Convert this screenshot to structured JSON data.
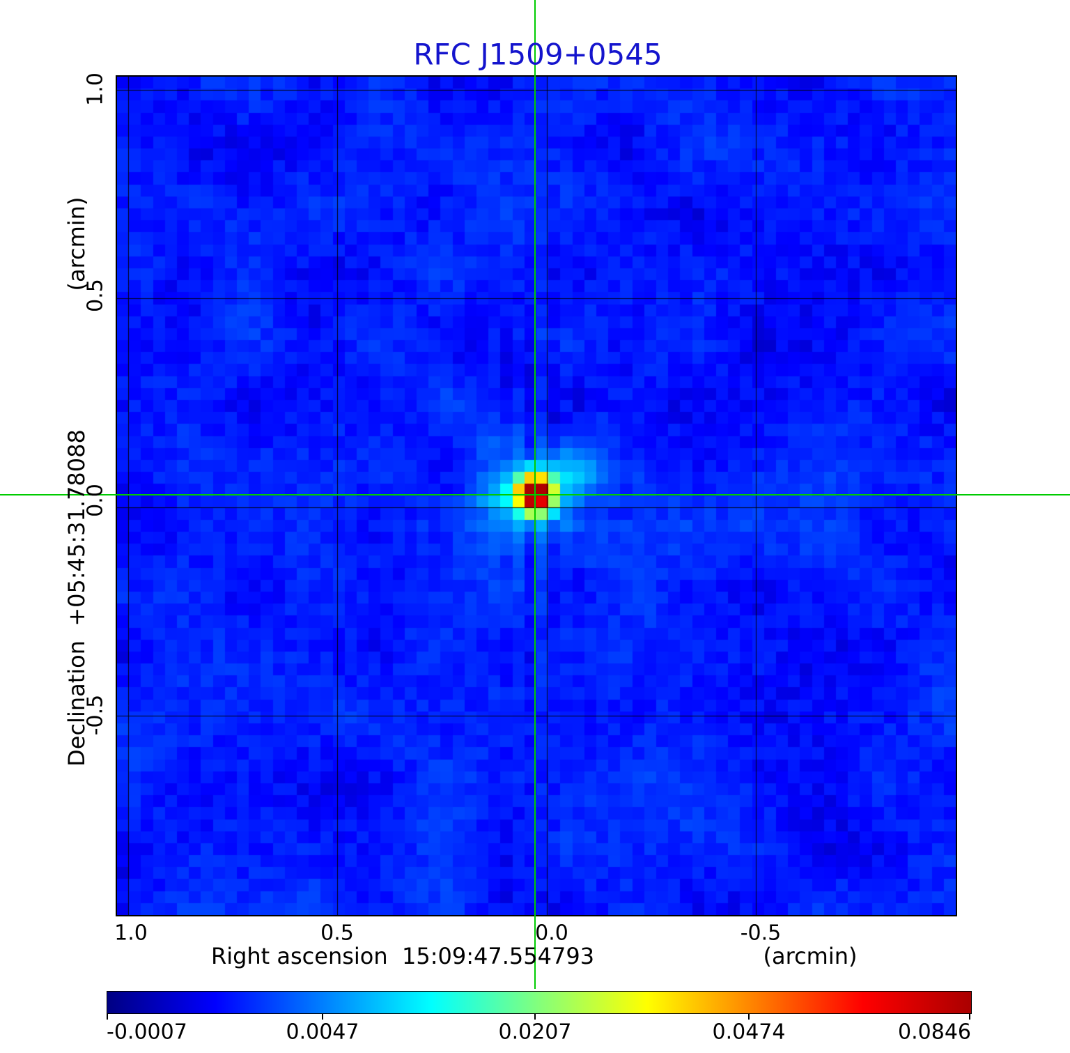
{
  "figure": {
    "title": "RFC J1509+0545",
    "title_color": "#1414cd",
    "background": "#ffffff"
  },
  "axes": {
    "x": {
      "title": "Right ascension  15:09:47.554793",
      "unit": "(arcmin)",
      "tick_labels": [
        "1.0",
        "0.5",
        "0.0",
        "-0.5"
      ]
    },
    "y": {
      "title": "Declination  +05:45:31.78088",
      "unit": "(arcmin)",
      "tick_labels": [
        "1.0",
        "0.5",
        "0.0",
        "-0.5"
      ]
    }
  },
  "colorbar": {
    "tick_labels": [
      "-0.0007",
      "0.0047",
      "0.0207",
      "0.0474",
      "0.0846"
    ]
  },
  "chart_data": {
    "type": "heatmap",
    "title": "RFC J1509+0545",
    "xlabel": "Right ascension 15:09:47.554793 (arcmin)",
    "ylabel": "Declination +05:45:31.78088 (arcmin)",
    "x_ticks_arcmin": [
      1.0,
      0.5,
      0.0,
      -0.5
    ],
    "y_ticks_arcmin": [
      1.0,
      0.5,
      0.0,
      -0.5
    ],
    "x_range_arcmin": [
      1.025,
      -0.978
    ],
    "y_range_arcmin": [
      -0.978,
      1.025
    ],
    "grid": true,
    "colormap": "jet",
    "intensity_scale": "quadratic",
    "colorbar_values": [
      -0.0007,
      0.0047,
      0.0207,
      0.0474,
      0.0846
    ],
    "vmin": -0.0007,
    "vmax": 0.0846,
    "source": {
      "peak_value": 0.0846,
      "x_arcmin": 0.028,
      "y_arcmin": 0.03,
      "cell_x": 34.9,
      "cell_y": 34.85,
      "amp": 0.1,
      "sigma_cells": 0.93
    },
    "crosshair": {
      "x_arcmin": 0.028,
      "y_arcmin": 0.03,
      "color": "#00cc00"
    },
    "noise": {
      "cells": 70,
      "seed": 1509545,
      "background_mean": 0.0012,
      "background_spread": 0.0013
    }
  }
}
